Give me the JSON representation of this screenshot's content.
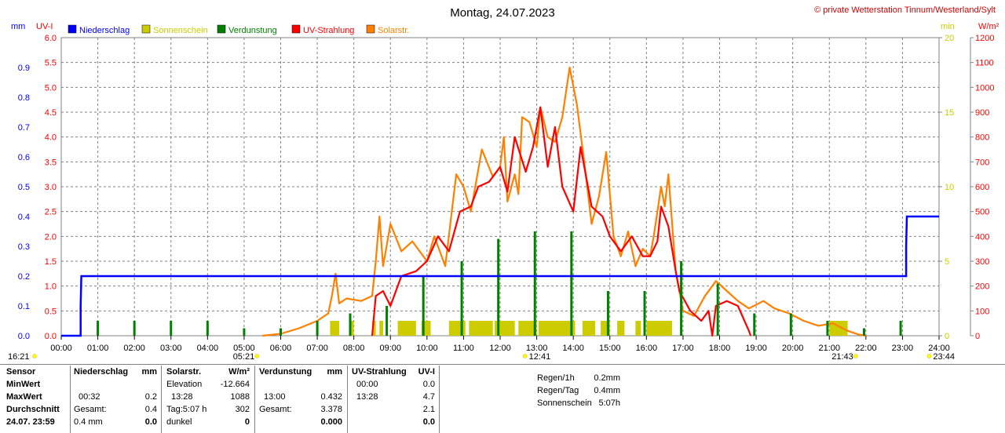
{
  "title": "Montag, 24.07.2023",
  "copyright": "© private Wetterstation Tinnum/Westerland/Sylt",
  "colors": {
    "niederschlag": "#0000ff",
    "sonnenschein": "#cccc00",
    "verdunstung": "#008000",
    "uv": "#ff0000",
    "solar": "#ff8000",
    "grid": "#808080"
  },
  "axes": {
    "left_unit_mm": "mm",
    "left_unit_uv": "UV-I",
    "right_unit_min": "min",
    "right_unit_wm2": "W/m²"
  },
  "chart_data": {
    "type": "line",
    "title": "Montag, 24.07.2023",
    "x_ticks": [
      "00:00",
      "01:00",
      "02:00",
      "03:00",
      "04:00",
      "05:00",
      "06:00",
      "07:00",
      "08:00",
      "09:00",
      "10:00",
      "11:00",
      "12:00",
      "13:00",
      "14:00",
      "15:00",
      "16:00",
      "17:00",
      "18:00",
      "19:00",
      "20:00",
      "21:00",
      "22:00",
      "23:00",
      "24:00"
    ],
    "x_range_hours": [
      0,
      24
    ],
    "y_axes": {
      "mm": {
        "range": [
          0,
          1.0
        ],
        "ticks": [
          "0.0",
          "0.1",
          "0.2",
          "0.3",
          "0.4",
          "0.5",
          "0.6",
          "0.7",
          "0.8",
          "0.9"
        ]
      },
      "uv": {
        "range": [
          0,
          6.0
        ],
        "ticks": [
          "0.0",
          "0.5",
          "1.0",
          "1.5",
          "2.0",
          "2.5",
          "3.0",
          "3.5",
          "4.0",
          "4.5",
          "5.0",
          "5.5",
          "6.0"
        ]
      },
      "min": {
        "range": [
          0,
          20
        ],
        "ticks": [
          "0",
          "5",
          "10",
          "15",
          "20"
        ]
      },
      "wm2": {
        "range": [
          0,
          1200
        ],
        "ticks": [
          "0",
          "100",
          "200",
          "300",
          "400",
          "500",
          "600",
          "700",
          "800",
          "900",
          "1000",
          "1100",
          "1200"
        ]
      }
    },
    "legend": [
      "Niederschlag",
      "Sonnenschein",
      "Verdunstung",
      "UV-Strahlung",
      "Solarstr."
    ],
    "legend_placement": "top-left",
    "grid": true,
    "series": [
      {
        "name": "Niederschlag",
        "axis": "mm",
        "points": [
          [
            0,
            0
          ],
          [
            0.53,
            0
          ],
          [
            0.53,
            0.1
          ],
          [
            0.55,
            0.2
          ],
          [
            23.1,
            0.2
          ],
          [
            23.1,
            0.3
          ],
          [
            23.12,
            0.4
          ],
          [
            24,
            0.4
          ]
        ]
      },
      {
        "name": "Solarstr.",
        "axis": "wm2",
        "points": [
          [
            5.5,
            0
          ],
          [
            6,
            8
          ],
          [
            6.5,
            30
          ],
          [
            7,
            60
          ],
          [
            7.3,
            90
          ],
          [
            7.4,
            160
          ],
          [
            7.5,
            250
          ],
          [
            7.6,
            130
          ],
          [
            7.8,
            150
          ],
          [
            8.2,
            140
          ],
          [
            8.5,
            160
          ],
          [
            8.6,
            300
          ],
          [
            8.7,
            480
          ],
          [
            8.8,
            280
          ],
          [
            9,
            450
          ],
          [
            9.3,
            340
          ],
          [
            9.6,
            380
          ],
          [
            10,
            300
          ],
          [
            10.2,
            400
          ],
          [
            10.5,
            280
          ],
          [
            10.8,
            650
          ],
          [
            11,
            600
          ],
          [
            11.2,
            500
          ],
          [
            11.5,
            750
          ],
          [
            11.8,
            640
          ],
          [
            12,
            680
          ],
          [
            12.1,
            800
          ],
          [
            12.2,
            540
          ],
          [
            12.4,
            650
          ],
          [
            12.5,
            570
          ],
          [
            12.6,
            880
          ],
          [
            12.8,
            860
          ],
          [
            13,
            760
          ],
          [
            13.1,
            920
          ],
          [
            13.3,
            800
          ],
          [
            13.5,
            780
          ],
          [
            13.7,
            880
          ],
          [
            13.9,
            1080
          ],
          [
            14.1,
            930
          ],
          [
            14.3,
            700
          ],
          [
            14.5,
            450
          ],
          [
            14.7,
            560
          ],
          [
            14.9,
            740
          ],
          [
            15.1,
            400
          ],
          [
            15.3,
            320
          ],
          [
            15.5,
            420
          ],
          [
            15.7,
            280
          ],
          [
            15.9,
            350
          ],
          [
            16.1,
            320
          ],
          [
            16.2,
            400
          ],
          [
            16.4,
            600
          ],
          [
            16.5,
            520
          ],
          [
            16.6,
            650
          ],
          [
            16.8,
            260
          ],
          [
            17,
            100
          ],
          [
            17.3,
            80
          ],
          [
            17.6,
            160
          ],
          [
            17.9,
            220
          ],
          [
            18.2,
            180
          ],
          [
            18.5,
            140
          ],
          [
            18.8,
            110
          ],
          [
            19.2,
            140
          ],
          [
            19.5,
            110
          ],
          [
            19.9,
            90
          ],
          [
            20.3,
            60
          ],
          [
            20.7,
            40
          ],
          [
            21.1,
            50
          ],
          [
            21.5,
            20
          ],
          [
            21.8,
            5
          ],
          [
            22,
            0
          ]
        ]
      },
      {
        "name": "UV-Strahlung",
        "axis": "uv",
        "points": [
          [
            8.5,
            0
          ],
          [
            8.6,
            0.8
          ],
          [
            8.8,
            0.9
          ],
          [
            9,
            0.6
          ],
          [
            9.3,
            1.2
          ],
          [
            9.7,
            1.3
          ],
          [
            10,
            1.5
          ],
          [
            10.3,
            2.0
          ],
          [
            10.6,
            1.7
          ],
          [
            10.9,
            2.5
          ],
          [
            11.2,
            2.6
          ],
          [
            11.4,
            3.0
          ],
          [
            11.7,
            3.1
          ],
          [
            12,
            3.4
          ],
          [
            12.2,
            2.9
          ],
          [
            12.4,
            4.0
          ],
          [
            12.7,
            3.3
          ],
          [
            12.9,
            3.8
          ],
          [
            13.1,
            4.6
          ],
          [
            13.3,
            3.4
          ],
          [
            13.5,
            4.2
          ],
          [
            13.7,
            3.0
          ],
          [
            14,
            2.5
          ],
          [
            14.2,
            3.8
          ],
          [
            14.5,
            2.6
          ],
          [
            14.8,
            2.4
          ],
          [
            15,
            2.0
          ],
          [
            15.3,
            1.7
          ],
          [
            15.6,
            2.0
          ],
          [
            15.9,
            1.6
          ],
          [
            16.1,
            1.6
          ],
          [
            16.3,
            1.9
          ],
          [
            16.4,
            2.6
          ],
          [
            16.6,
            2.2
          ],
          [
            16.8,
            1.3
          ],
          [
            16.9,
            0.9
          ],
          [
            17.2,
            0.5
          ],
          [
            17.5,
            0.3
          ],
          [
            17.7,
            0.5
          ],
          [
            17.8,
            0
          ],
          [
            17.9,
            0.6
          ],
          [
            18.2,
            0.7
          ],
          [
            18.5,
            0.6
          ],
          [
            18.8,
            0.1
          ],
          [
            18.85,
            0
          ]
        ]
      },
      {
        "name": "Verdunstung",
        "axis": "min",
        "spikes_x": [
          1,
          2,
          3,
          4,
          5,
          6,
          7,
          7.9,
          8.9,
          9.9,
          10.95,
          11.95,
          12.95,
          13.95,
          14.95,
          15.95,
          16.95,
          17.95,
          18.95,
          19.95,
          20.95,
          21.95,
          22.95
        ],
        "spikes_min": [
          1,
          1,
          1,
          1,
          0.5,
          0.5,
          1,
          1.5,
          2,
          4,
          5,
          6.5,
          7,
          7,
          3,
          3,
          5,
          3.5,
          1.5,
          1.5,
          1,
          0.5,
          1
        ]
      },
      {
        "name": "Sonnenschein",
        "axis": "min",
        "bars": [
          [
            7.35,
            7.6,
            1
          ],
          [
            7.9,
            8.0,
            1
          ],
          [
            8.5,
            8.6,
            1
          ],
          [
            8.7,
            8.8,
            1
          ],
          [
            9.2,
            9.7,
            1
          ],
          [
            9.85,
            10.1,
            1
          ],
          [
            10.6,
            11.05,
            1
          ],
          [
            11.15,
            11.8,
            1
          ],
          [
            11.85,
            12.4,
            1
          ],
          [
            12.5,
            13.0,
            1
          ],
          [
            13.05,
            14.05,
            1
          ],
          [
            14.25,
            14.6,
            1
          ],
          [
            14.75,
            15.0,
            1
          ],
          [
            15.2,
            15.4,
            1
          ],
          [
            15.7,
            15.85,
            1
          ],
          [
            16.0,
            16.7,
            1
          ],
          [
            21.0,
            21.5,
            1
          ]
        ]
      }
    ]
  },
  "time_labels": [
    {
      "x": 0.0,
      "text": "16:21"
    },
    {
      "x": 5.35,
      "text": "05:21"
    },
    {
      "x": 12.68,
      "text": "12:41"
    },
    {
      "x": 21.72,
      "text": "21:43"
    },
    {
      "x": 23.73,
      "text": "23:44"
    }
  ],
  "stats": {
    "sensor": {
      "header": "Sensor",
      "rows": [
        "MinWert",
        "MaxWert",
        "Durchschnitt",
        "24.07. 23:59"
      ]
    },
    "niederschlag": {
      "header": "Niederschlag",
      "unit": "mm",
      "r1l": "",
      "r1v": "",
      "r2l": "00:32",
      "r2v": "0.2",
      "r3l": "Gesamt:",
      "r3v": "0.4",
      "r4l": "0.4 mm",
      "r4v": "0.0"
    },
    "solar": {
      "header": "Solarstr.",
      "unit": "W/m²",
      "r1l": "Elevation",
      "r1v": "-12.664",
      "r2l": "13:28",
      "r2v": "1088",
      "r3l": "Tag:5:07 h",
      "r3v": "302",
      "r4l": "dunkel",
      "r4v": "0"
    },
    "verdunstung": {
      "header": "Verdunstung",
      "unit": "mm",
      "r1l": "",
      "r1v": "",
      "r2l": "13:00",
      "r2v": "0.432",
      "r3l": "Gesamt:",
      "r3v": "3.378",
      "r4l": "",
      "r4v": "0.000"
    },
    "uv": {
      "header": "UV-Strahlung",
      "unit": "UV-I",
      "r1l": "00:00",
      "r1v": "0.0",
      "r2l": "13:28",
      "r2v": "4.7",
      "r3l": "",
      "r3v": "2.1",
      "r4l": "",
      "r4v": "0.0"
    },
    "extra": [
      {
        "label": "Regen/1h",
        "value": "0.2mm"
      },
      {
        "label": "Regen/Tag",
        "value": "0.4mm"
      },
      {
        "label": "Sonnenschein",
        "value": "5:07h"
      }
    ]
  }
}
